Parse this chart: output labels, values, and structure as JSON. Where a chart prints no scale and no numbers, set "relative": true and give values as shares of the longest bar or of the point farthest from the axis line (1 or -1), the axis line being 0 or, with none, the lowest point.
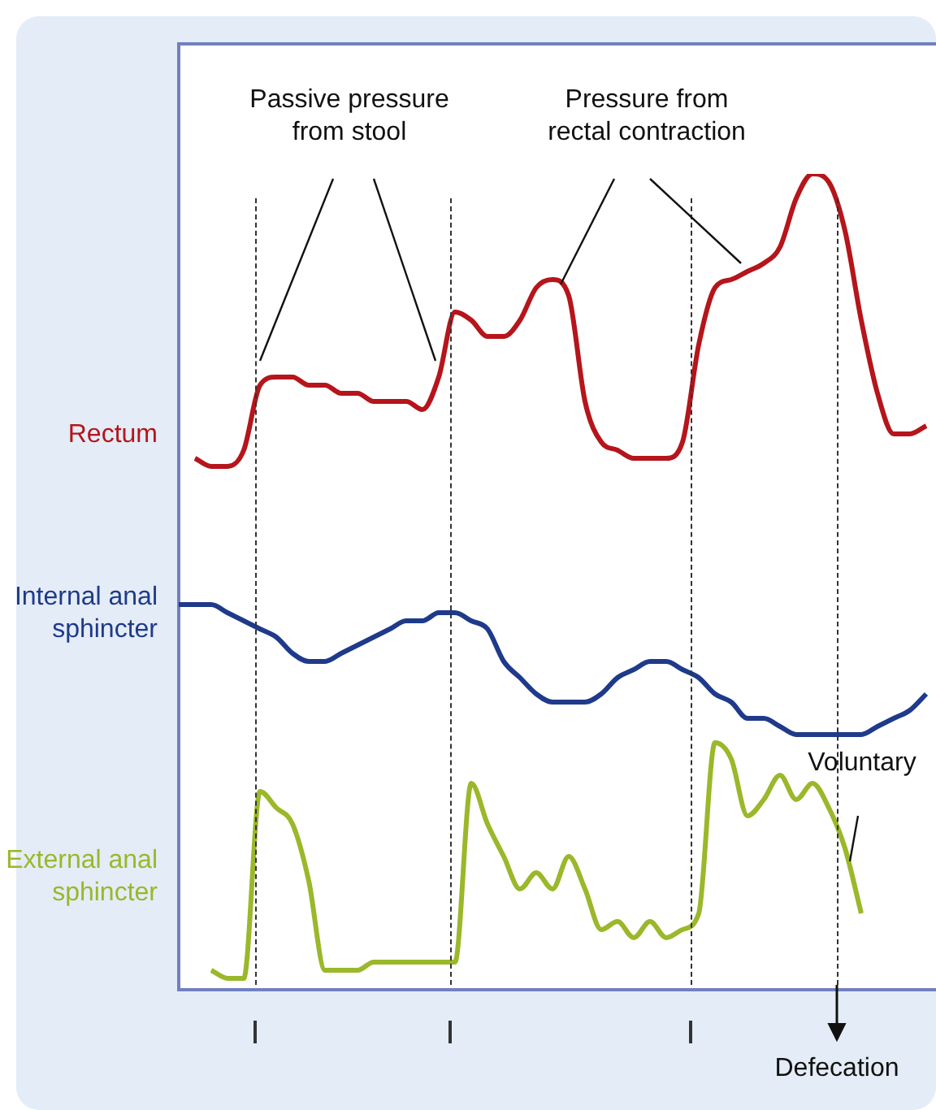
{
  "chart_data": {
    "type": "line",
    "relative": true,
    "categories": [
      null,
      null,
      null,
      null,
      null,
      null,
      null,
      null,
      null,
      null,
      null,
      null,
      null,
      null,
      null,
      null,
      null,
      null,
      null,
      null,
      null,
      null,
      null,
      null,
      null,
      null,
      null,
      null,
      null,
      null,
      null,
      null,
      null,
      null,
      null,
      null,
      null,
      null,
      null,
      null,
      null,
      null,
      null,
      null,
      null,
      null,
      null
    ],
    "series": [
      {
        "name": "Rectum",
        "color": "#b5151b",
        "values": [
          null,
          0.65,
          0.64,
          0.64,
          0.66,
          0.74,
          0.75,
          0.75,
          0.74,
          0.74,
          0.73,
          0.73,
          0.72,
          0.72,
          0.72,
          0.71,
          0.75,
          0.83,
          0.82,
          0.8,
          0.8,
          0.82,
          0.86,
          0.87,
          0.85,
          0.72,
          0.67,
          0.66,
          0.65,
          0.65,
          0.65,
          0.67,
          0.79,
          0.86,
          0.87,
          0.88,
          0.89,
          0.91,
          0.97,
          1,
          0.99,
          0.93,
          0.82,
          0.73,
          0.68,
          0.68,
          0.69
        ]
      },
      {
        "name": "Internal anal sphincter",
        "color": "#1f3a8a",
        "values": [
          0.47,
          0.47,
          0.47,
          0.46,
          0.45,
          0.44,
          0.43,
          0.41,
          0.4,
          0.4,
          0.41,
          0.42,
          0.43,
          0.44,
          0.45,
          0.45,
          0.46,
          0.46,
          0.45,
          0.44,
          0.4,
          0.38,
          0.36,
          0.35,
          0.35,
          0.35,
          0.36,
          0.38,
          0.39,
          0.4,
          0.4,
          0.39,
          0.38,
          0.36,
          0.35,
          0.33,
          0.33,
          0.32,
          0.31,
          0.31,
          0.31,
          0.31,
          0.31,
          0.32,
          0.33,
          0.34,
          0.36
        ]
      },
      {
        "name": "External anal sphincter",
        "color": "#9ab82a",
        "values": [
          null,
          null,
          0.02,
          0.01,
          0.01,
          0.24,
          0.22,
          0.2,
          0.13,
          0.02,
          0.02,
          0.02,
          0.03,
          0.03,
          0.03,
          0.03,
          0.03,
          0.03,
          0.25,
          0.2,
          0.16,
          0.12,
          0.14,
          0.12,
          0.16,
          0.12,
          0.07,
          0.08,
          0.06,
          0.08,
          0.06,
          0.07,
          0.09,
          0.3,
          0.28,
          0.21,
          0.23,
          0.26,
          0.23,
          0.25,
          0.22,
          0.17,
          0.09,
          null,
          null,
          null,
          null
        ]
      }
    ],
    "annotations": [
      "Passive pressure from stool",
      "Pressure from rectal contraction",
      "Voluntary",
      "Defecation"
    ]
  }
}
